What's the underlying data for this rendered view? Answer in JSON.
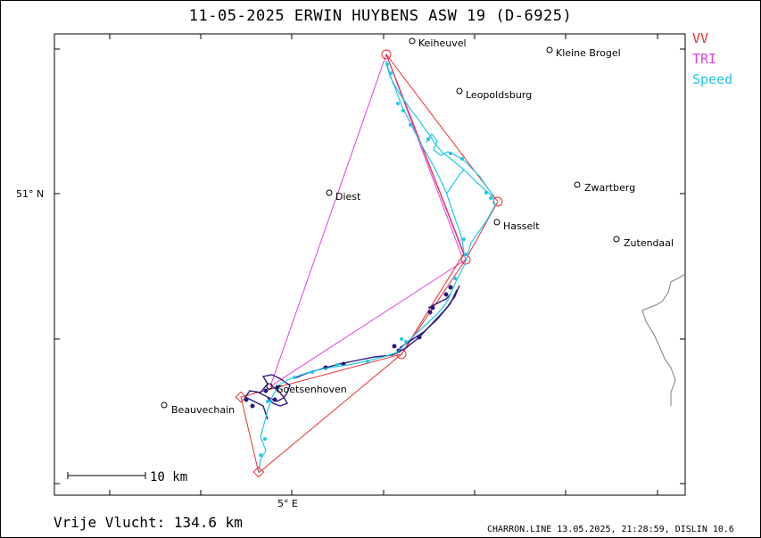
{
  "header": {
    "title": "11-05-2025   ERWIN HUYBENS   ASW 19 (D-6925)"
  },
  "legend": [
    {
      "label": "VV",
      "color": "#e83030"
    },
    {
      "label": "TRI",
      "color": "#e040e0"
    },
    {
      "label": "Speed",
      "color": "#20c8e8"
    }
  ],
  "axes": {
    "lat_label": "51° N",
    "lon_label": "5° E"
  },
  "scale": {
    "label": "10 km"
  },
  "places": [
    {
      "name": "Keiheuvel"
    },
    {
      "name": "Kleine Brogel"
    },
    {
      "name": "Leopoldsburg"
    },
    {
      "name": "Diest"
    },
    {
      "name": "Zwartberg"
    },
    {
      "name": "Hasselt"
    },
    {
      "name": "Zutendaal"
    },
    {
      "name": "Goetsenhoven"
    },
    {
      "name": "Beauvechain"
    }
  ],
  "footer": {
    "distance": "Vrije Vlucht:  134.6 km",
    "credit": "CHARRON.LINE 13.05.2025, 21:28:59, DISLIN 10.6"
  },
  "colors": {
    "track_dark": "#2a1a80",
    "border": "#808080"
  }
}
